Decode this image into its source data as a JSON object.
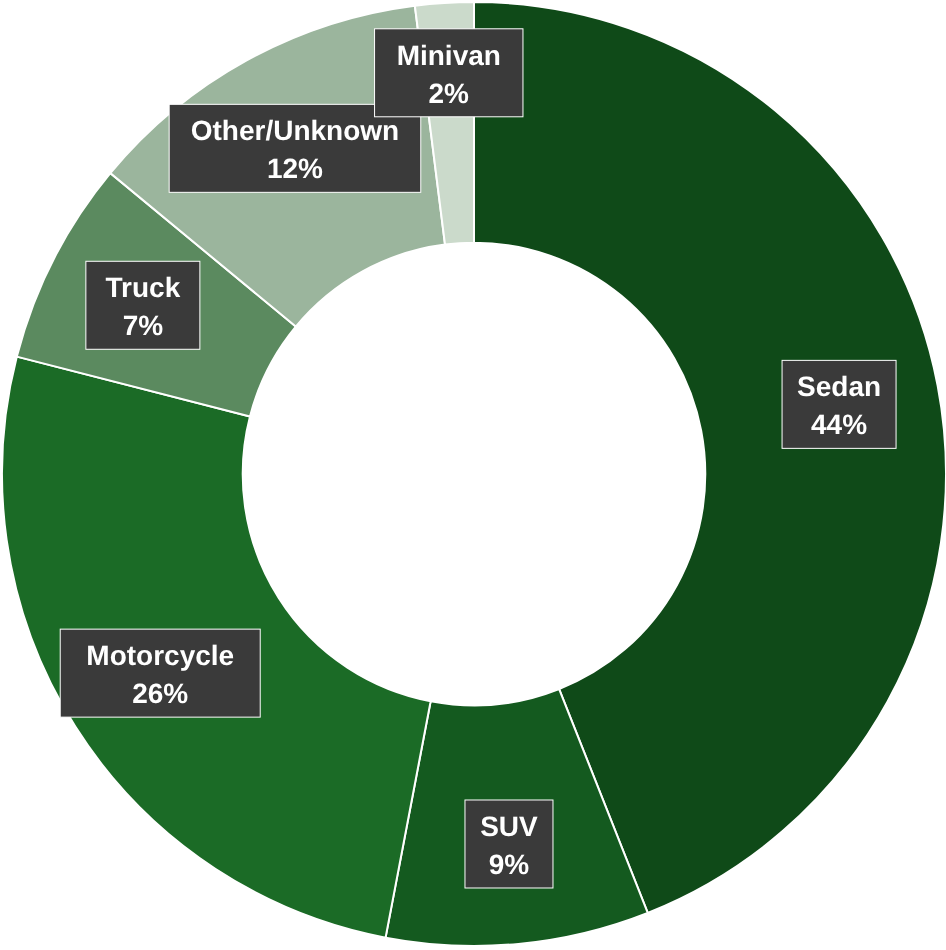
{
  "chart_data": {
    "type": "donut",
    "categories": [
      "Sedan",
      "SUV",
      "Motorcycle",
      "Truck",
      "Other/Unknown",
      "Minivan"
    ],
    "values": [
      44,
      9,
      26,
      7,
      12,
      2
    ],
    "value_labels": [
      "44%",
      "9%",
      "26%",
      "7%",
      "12%",
      "2%"
    ],
    "colors": [
      "#0f4a18",
      "#145a1f",
      "#1b6b26",
      "#5b8a5f",
      "#9bb59d",
      "#cbdacb"
    ]
  }
}
